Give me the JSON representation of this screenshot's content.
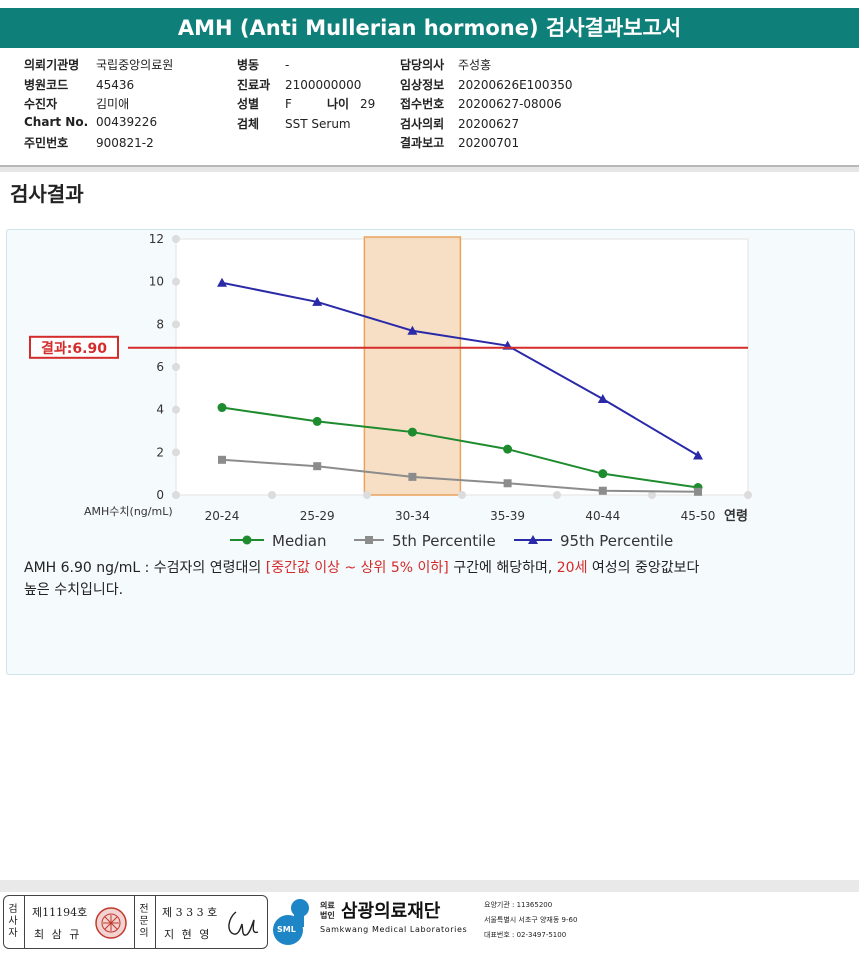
{
  "report_title": "AMH (Anti Mullerian hormone) 검사결과보고서",
  "info_col1": [
    {
      "label": "의뢰기관명",
      "value": "국립중앙의료원"
    },
    {
      "label": "병원코드",
      "value": "45436"
    },
    {
      "label": "수진자",
      "value": "김미애"
    },
    {
      "label": "Chart No.",
      "value": "00439226"
    },
    {
      "label": "주민번호",
      "value": "900821-2"
    }
  ],
  "info_col2": [
    {
      "label": "병동",
      "value": "-"
    },
    {
      "label": "진료과",
      "value": "2100000000"
    },
    {
      "label": "성별",
      "value": "F"
    },
    {
      "label": "검체",
      "value": "SST Serum"
    }
  ],
  "age": {
    "label": "나이",
    "value": "29"
  },
  "info_col3": [
    {
      "label": "담당의사",
      "value": "주성홍"
    },
    {
      "label": "임상정보",
      "value": "20200626E100350"
    },
    {
      "label": "접수번호",
      "value": "20200627-08006"
    },
    {
      "label": "검사의뢰",
      "value": "20200627"
    },
    {
      "label": "결과보고",
      "value": "20200701"
    }
  ],
  "section_title": "검사결과",
  "chart_data": {
    "type": "line",
    "categories": [
      "20-24",
      "25-29",
      "30-34",
      "35-39",
      "40-44",
      "45-50"
    ],
    "xlabel": "연령",
    "ylabel": "AMH수치(ng/mL)",
    "ylim": [
      0,
      12
    ],
    "yticks": [
      0,
      2,
      4,
      6,
      8,
      10,
      12
    ],
    "grid": false,
    "legend_position": "bottom",
    "highlight_category": "30-34",
    "result_line": {
      "label": "결과:6.90",
      "value": 6.9
    },
    "series": [
      {
        "name": "Median",
        "marker": "circle",
        "color": "#1e8c2e",
        "values": [
          4.1,
          3.45,
          2.95,
          2.15,
          1.0,
          0.35
        ]
      },
      {
        "name": "5th Percentile",
        "marker": "square",
        "color": "#8c8c8c",
        "values": [
          1.65,
          1.35,
          0.85,
          0.55,
          0.2,
          0.15
        ]
      },
      {
        "name": "95th Percentile",
        "marker": "triangle",
        "color": "#2a2aa8",
        "values": [
          9.95,
          9.05,
          7.7,
          7.0,
          4.5,
          1.85
        ]
      }
    ]
  },
  "result_text": {
    "part1": "AMH  6.90 ng/mL : 수검자의 연령대의 ",
    "part2": "[중간값 이상 ~ 상위 5% 이하]",
    "part3": " 구간에 해당하며, ",
    "part4": "20세",
    "part5": " 여성의 중앙값보다",
    "part6": "높은 수치입니다."
  },
  "signature": {
    "tester_head": "검사자",
    "tester_no": "제11194호",
    "tester_name": "최 삼 규",
    "doctor_head": "전문의",
    "doctor_no": "제 3 3 3 호",
    "doctor_name": "지 현 영"
  },
  "footer": {
    "legal_line1": "의료",
    "legal_line2": "법인",
    "org_name": "삼광의료재단",
    "org_en": "Samkwang Medical Laboratories",
    "logo_badge": "SML",
    "inst_no": "요양기관 : 11365200",
    "address": "서울특별시 서초구 양재동 9-60",
    "phone": "대표번호 : 02-3497-5100"
  },
  "colors": {
    "teal": "#0f7f7a",
    "result_red": "#d42b2b",
    "highlight": "#f6d9bc"
  }
}
